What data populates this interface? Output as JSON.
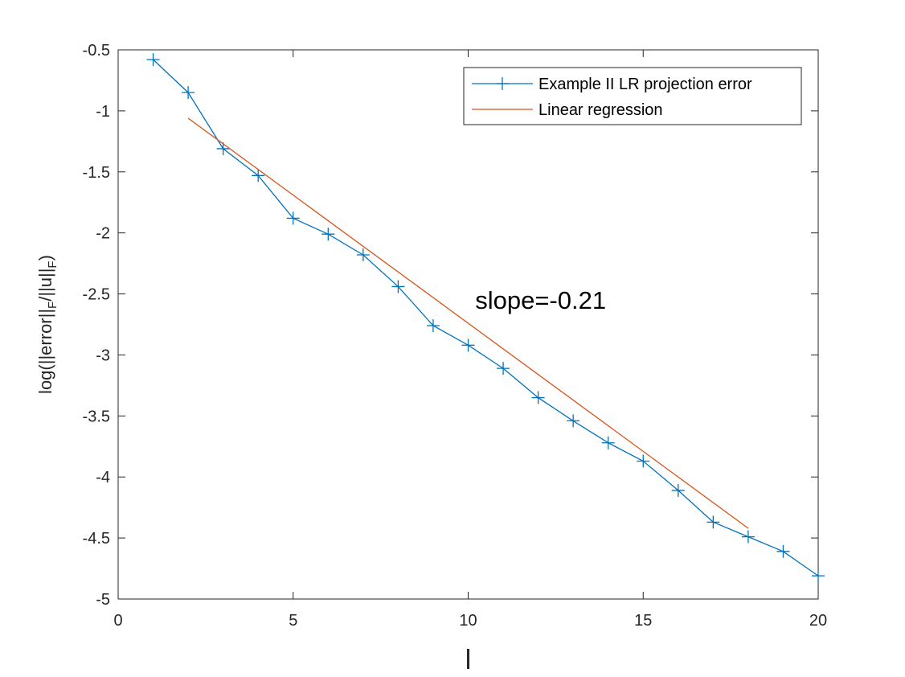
{
  "chart_data": {
    "type": "line",
    "title": "",
    "xlabel": "l",
    "ylabel": {
      "parts": [
        "log(||error||",
        "F",
        "/||u||",
        "F",
        ")"
      ]
    },
    "xlim": [
      0,
      20
    ],
    "ylim": [
      -5,
      -0.5
    ],
    "xticks": [
      0,
      5,
      10,
      15,
      20
    ],
    "yticks": [
      -5,
      -4.5,
      -4,
      -3.5,
      -3,
      -2.5,
      -2,
      -1.5,
      -1,
      -0.5
    ],
    "xtick_labels": [
      "0",
      "5",
      "10",
      "15",
      "20"
    ],
    "ytick_labels": [
      "-5",
      "-4.5",
      "-4",
      "-3.5",
      "-3",
      "-2.5",
      "-2",
      "-1.5",
      "-1",
      "-0.5"
    ],
    "grid": false,
    "legend_position": "top-right",
    "series": [
      {
        "name": "Example II LR projection error",
        "color": "#0072BD",
        "marker": "+",
        "x": [
          1,
          2,
          3,
          4,
          5,
          6,
          7,
          8,
          9,
          10,
          11,
          12,
          13,
          14,
          15,
          16,
          17,
          18,
          19,
          20
        ],
        "y": [
          -0.58,
          -0.85,
          -1.31,
          -1.53,
          -1.88,
          -2.01,
          -2.18,
          -2.44,
          -2.76,
          -2.92,
          -3.11,
          -3.35,
          -3.54,
          -3.72,
          -3.87,
          -4.11,
          -4.37,
          -4.49,
          -4.61,
          -4.81
        ]
      },
      {
        "name": "Linear regression",
        "color": "#D95319",
        "marker": "none",
        "x": [
          2,
          18
        ],
        "y": [
          -1.06,
          -4.42
        ]
      }
    ],
    "annotations": [
      {
        "text": "slope=-0.21",
        "x": 10.2,
        "y": -2.55
      }
    ]
  }
}
